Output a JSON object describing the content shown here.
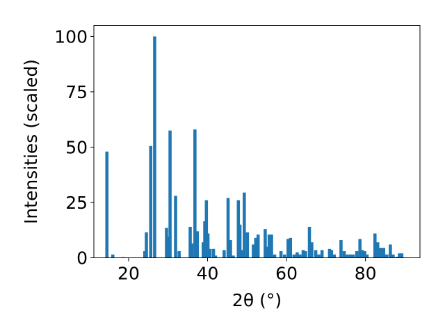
{
  "chart_data": {
    "type": "bar",
    "xlabel": "2θ (°)",
    "ylabel": "Intensities (scaled)",
    "xlim": [
      11.2,
      93.8
    ],
    "ylim": [
      0,
      105
    ],
    "x_ticks": [
      20,
      40,
      60,
      80
    ],
    "y_ticks": [
      0,
      25,
      50,
      75,
      100
    ],
    "bar_color": "#1f77b4",
    "bar_width": 0.8,
    "x": [
      14.5,
      16.0,
      18.5,
      19.2,
      24.1,
      24.5,
      25.6,
      26.6,
      29.6,
      30.0,
      30.5,
      31.9,
      32.8,
      35.6,
      36.0,
      36.8,
      37.4,
      38.9,
      39.3,
      39.7,
      40.1,
      40.6,
      41.5,
      42.0,
      44.2,
      45.2,
      45.8,
      46.5,
      47.8,
      48.2,
      48.8,
      49.3,
      50.1,
      51.6,
      52.2,
      52.8,
      54.6,
      55.1,
      55.6,
      56.2,
      57.0,
      58.6,
      59.5,
      60.4,
      61.0,
      61.9,
      62.7,
      63.4,
      64.2,
      64.8,
      65.8,
      66.4,
      67.4,
      68.2,
      69.0,
      70.9,
      71.4,
      72.1,
      73.8,
      74.6,
      75.4,
      76.2,
      76.9,
      77.8,
      78.6,
      79.2,
      79.8,
      80.4,
      82.4,
      83.1,
      83.8,
      84.6,
      85.4,
      86.3,
      87.0,
      88.0,
      88.6,
      89.2
    ],
    "values": [
      48,
      1.5,
      0.3,
      0.2,
      3,
      11.5,
      50.5,
      100,
      13.5,
      9.5,
      57.5,
      28,
      3,
      14,
      6.5,
      58,
      12,
      7,
      16.5,
      26,
      11,
      4,
      4,
      1,
      3.5,
      27,
      8,
      1,
      26,
      15,
      3.5,
      29.5,
      11.5,
      6,
      9,
      10.5,
      13,
      5,
      10.5,
      10.5,
      1.5,
      3,
      1.5,
      8.5,
      9,
      1.5,
      2.5,
      1.5,
      3.5,
      3,
      14,
      7,
      3.5,
      1.5,
      3.5,
      4,
      3.5,
      1.5,
      8,
      3,
      1.5,
      1.5,
      1.5,
      3,
      8.5,
      3.5,
      3,
      1.5,
      11,
      7,
      4.5,
      4.5,
      1.5,
      6,
      1.5,
      0.5,
      2,
      2
    ]
  }
}
